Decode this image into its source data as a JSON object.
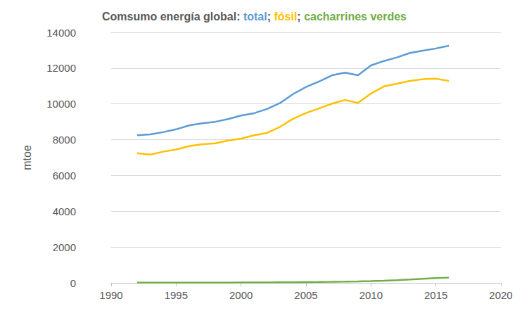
{
  "chart_data": {
    "type": "line",
    "title": "Comsumo energía global: total; fósil; cacharrines verdes",
    "y_label": "mtoe",
    "x": [
      1992,
      1993,
      1994,
      1995,
      1996,
      1997,
      1998,
      1999,
      2000,
      2001,
      2002,
      2003,
      2004,
      2005,
      2006,
      2007,
      2008,
      2009,
      2010,
      2011,
      2012,
      2013,
      2014,
      2015,
      2016
    ],
    "series": [
      {
        "name": "total",
        "color": "#5b9bd5",
        "values": [
          8250,
          8300,
          8420,
          8580,
          8800,
          8920,
          9000,
          9150,
          9350,
          9480,
          9720,
          10050,
          10550,
          10950,
          11250,
          11600,
          11750,
          11600,
          12150,
          12400,
          12600,
          12850,
          12980,
          13100,
          13250
        ]
      },
      {
        "name": "fósil",
        "color": "#ffc000",
        "values": [
          7250,
          7170,
          7330,
          7450,
          7640,
          7750,
          7800,
          7950,
          8060,
          8250,
          8380,
          8720,
          9170,
          9490,
          9750,
          10020,
          10220,
          10060,
          10580,
          10980,
          11130,
          11290,
          11380,
          11410,
          11290
        ]
      },
      {
        "name": "cacharrines verdes",
        "color": "#70ad47",
        "values": [
          5,
          6,
          7,
          8,
          9,
          10,
          11,
          13,
          15,
          18,
          22,
          27,
          33,
          40,
          47,
          55,
          65,
          78,
          95,
          120,
          150,
          185,
          225,
          265,
          290
        ]
      }
    ],
    "xlim": [
      1990,
      2020
    ],
    "xticks": [
      1990,
      1995,
      2000,
      2005,
      2010,
      2015,
      2020
    ],
    "ylim": [
      0,
      14000
    ],
    "yticks": [
      0,
      2000,
      4000,
      6000,
      8000,
      10000,
      12000,
      14000
    ],
    "grid": true
  }
}
